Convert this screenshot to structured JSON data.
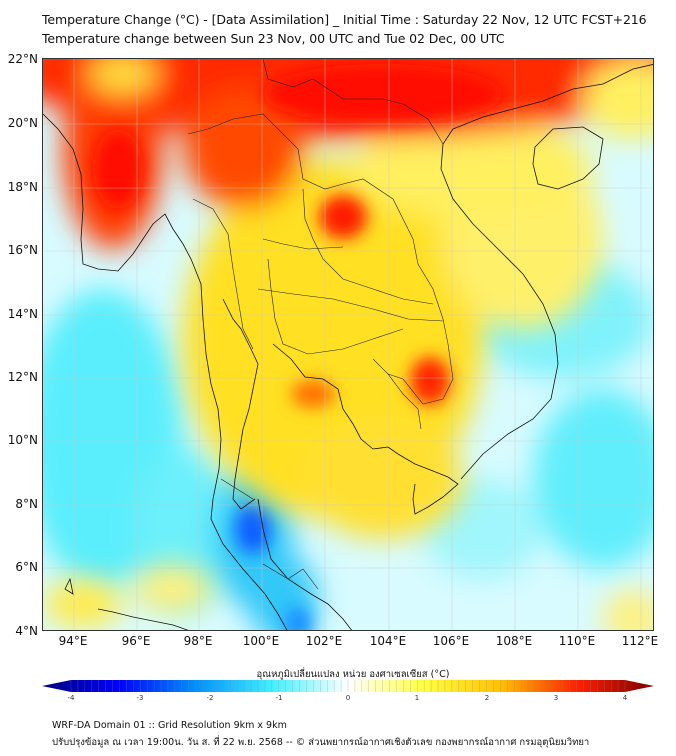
{
  "header": {
    "title": "Temperature Change (°C) - [Data Assimilation] _ Initial Time : Saturday 22 Nov, 12 UTC FCST+216",
    "subtitle": "Temperature change between Sun 23 Nov, 00 UTC and Tue 02 Dec, 00 UTC"
  },
  "axes": {
    "lat_labels": [
      "22°N",
      "20°N",
      "18°N",
      "16°N",
      "14°N",
      "12°N",
      "10°N",
      "8°N",
      "6°N",
      "4°N"
    ],
    "lon_labels": [
      "94°E",
      "96°E",
      "98°E",
      "100°E",
      "102°E",
      "104°E",
      "106°E",
      "108°E",
      "110°E",
      "112°E"
    ]
  },
  "colorbar": {
    "title": "อุณหภูมิเปลี่ยนแปลง หน่วย องศาเซลเซียส (°C)",
    "ticks": [
      "-4",
      "-3",
      "-2",
      "-1",
      "0",
      "1",
      "2",
      "3",
      "4"
    ],
    "range": [
      -4,
      4
    ],
    "colors": [
      "#00007a",
      "#0000ff",
      "#0090ff",
      "#40f0ff",
      "#ffffff",
      "#ffff40",
      "#ffc000",
      "#ff2000",
      "#7a0000"
    ]
  },
  "footer": {
    "line1": "WRF-DA Domain 01 :: Grid Resolution 9km x 9km",
    "line2": "ปรับปรุงข้อมูล ณ เวลา 19:00น. วัน ส. ที่ 22 พ.ย. 2568 -- © ส่วนพยากรณ์อากาศเชิงตัวเลข กองพยากรณ์อากาศ กรมอุตุนิยมวิทยา"
  }
}
